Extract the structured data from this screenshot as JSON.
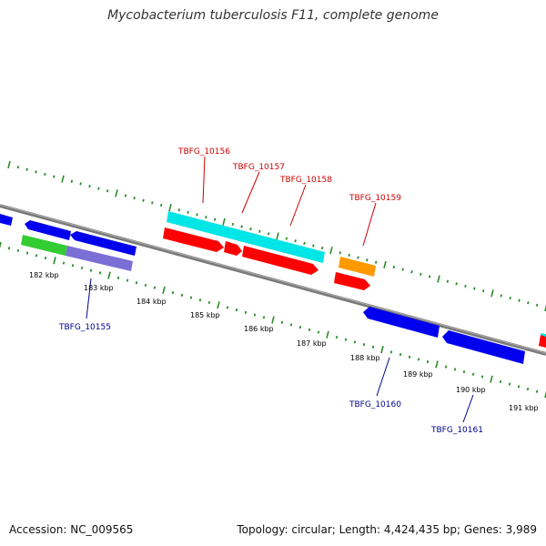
{
  "title": "Mycobacterium tuberculosis F11, complete genome",
  "footer": {
    "accession": "Accession: NC_009565",
    "summary": "Topology: circular; Length: 4,424,435 bp; Genes: 3,989"
  },
  "colors": {
    "backbone": "#888888",
    "tick_green": "#2b8a2b",
    "forward_label": "#cc0000",
    "reverse_label": "#00008b",
    "red": "#ff0000",
    "blue": "#0000ee",
    "cyan": "#00e5e5",
    "orange": "#ff9900",
    "green": "#33cc33",
    "purple": "#7b6fd6"
  },
  "scale_labels": [
    "182 kbp",
    "183 kbp",
    "184 kbp",
    "185 kbp",
    "186 kbp",
    "187 kbp",
    "188 kbp",
    "189 kbp",
    "190 kbp",
    "191 kbp"
  ],
  "gene_labels": [
    {
      "text": "TBFG_10156",
      "strand": "forward"
    },
    {
      "text": "TBFG_10157",
      "strand": "forward"
    },
    {
      "text": "TBFG_10158",
      "strand": "forward"
    },
    {
      "text": "TBFG_10159",
      "strand": "forward"
    },
    {
      "text": "TBFG_10155",
      "strand": "reverse"
    },
    {
      "text": "TBFG_10160",
      "strand": "reverse"
    },
    {
      "text": "TBFG_10161",
      "strand": "reverse"
    }
  ]
}
